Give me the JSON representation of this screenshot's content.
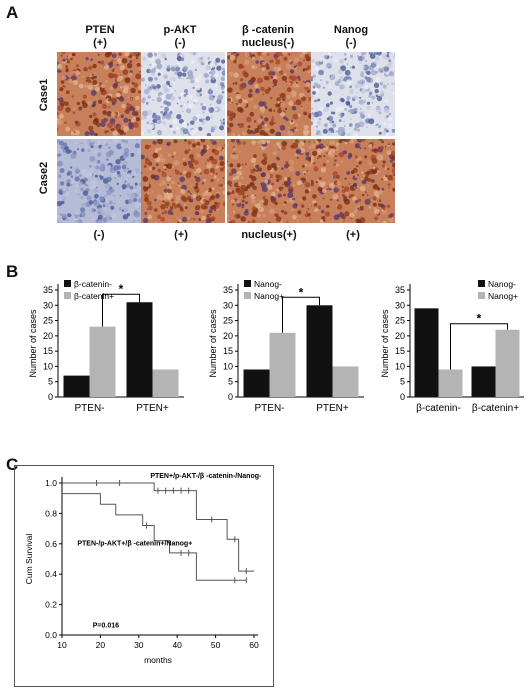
{
  "panels": {
    "a": "A",
    "b": "B",
    "c": "C"
  },
  "ihc": {
    "columns": [
      {
        "title": "PTEN",
        "sub": "(+)"
      },
      {
        "title": "p-AKT",
        "sub": "(-)"
      },
      {
        "title": "β -catenin",
        "sub": "nucleus(-)"
      },
      {
        "title": "Nanog",
        "sub": "(-)"
      }
    ],
    "rows": [
      "Case1",
      "Case2"
    ],
    "bottom": [
      "(-)",
      "(+)",
      "nucleus(+)",
      "(+)"
    ],
    "tiles": [
      [
        "brown",
        "blue",
        "brown",
        "blue"
      ],
      [
        "blue",
        "brown",
        "brown",
        "brown"
      ]
    ],
    "colors": {
      "brown": "#b5532e",
      "blue": "#8a96bf",
      "paleblue": "#d6d9e6"
    }
  },
  "chart_data": [
    {
      "type": "bar",
      "categories": [
        "PTEN-",
        "PTEN+"
      ],
      "series": [
        {
          "name": "β-catenin-",
          "values": [
            7,
            31
          ],
          "color": "#111111"
        },
        {
          "name": "β-catenin+",
          "values": [
            23,
            9
          ],
          "color": "#b4b4b4"
        }
      ],
      "ylabel": "Number of cases",
      "ylim": [
        0,
        35
      ],
      "yticks": [
        0,
        5,
        10,
        15,
        20,
        25,
        30,
        35
      ],
      "legend": "top-left",
      "significance": "*"
    },
    {
      "type": "bar",
      "categories": [
        "PTEN-",
        "PTEN+"
      ],
      "series": [
        {
          "name": "Nanog-",
          "values": [
            9,
            30
          ],
          "color": "#111111"
        },
        {
          "name": "Nanog+",
          "values": [
            21,
            10
          ],
          "color": "#b4b4b4"
        }
      ],
      "ylabel": "Number of cases",
      "ylim": [
        0,
        35
      ],
      "yticks": [
        0,
        5,
        10,
        15,
        20,
        25,
        30,
        35
      ],
      "legend": "top-left",
      "significance": "*"
    },
    {
      "type": "bar",
      "categories": [
        "β-catenin-",
        "β-catenin+"
      ],
      "series": [
        {
          "name": "Nanog-",
          "values": [
            29,
            10
          ],
          "color": "#111111"
        },
        {
          "name": "Nanog+",
          "values": [
            9,
            22
          ],
          "color": "#b4b4b4"
        }
      ],
      "ylabel": "Number of cases",
      "ylim": [
        0,
        35
      ],
      "yticks": [
        0,
        5,
        10,
        15,
        20,
        25,
        30,
        35
      ],
      "legend": "top-right",
      "significance": "*"
    },
    {
      "type": "line",
      "xlabel": "months",
      "ylabel": "Cum Survival",
      "xlim": [
        10,
        60
      ],
      "xticks": [
        10,
        20,
        30,
        40,
        50,
        60
      ],
      "ylim": [
        0,
        1.0
      ],
      "yticks": [
        "0.0",
        "0.2",
        "0.4",
        "0.6",
        "0.8",
        "1.0"
      ],
      "annotation": "P=0.016",
      "series": [
        {
          "name": "PTEN+/p-AKT-/β -catenin-/Nanog-",
          "steps": [
            [
              10,
              1.0
            ],
            [
              34,
              1.0
            ],
            [
              34,
              0.95
            ],
            [
              45,
              0.95
            ],
            [
              45,
              0.76
            ],
            [
              53,
              0.76
            ],
            [
              53,
              0.63
            ],
            [
              56,
              0.63
            ],
            [
              56,
              0.42
            ],
            [
              60,
              0.42
            ]
          ],
          "censored": [
            [
              19,
              1.0
            ],
            [
              25,
              1.0
            ],
            [
              35,
              0.95
            ],
            [
              37,
              0.95
            ],
            [
              39,
              0.95
            ],
            [
              41,
              0.95
            ],
            [
              43,
              0.95
            ],
            [
              49,
              0.76
            ],
            [
              55,
              0.63
            ],
            [
              58,
              0.42
            ]
          ]
        },
        {
          "name": "PTEN-/p-AKT+/β -catenin+/Nanog+",
          "steps": [
            [
              10,
              0.93
            ],
            [
              20,
              0.93
            ],
            [
              20,
              0.86
            ],
            [
              24,
              0.86
            ],
            [
              24,
              0.79
            ],
            [
              31,
              0.79
            ],
            [
              31,
              0.72
            ],
            [
              34,
              0.72
            ],
            [
              34,
              0.62
            ],
            [
              38,
              0.62
            ],
            [
              38,
              0.54
            ],
            [
              45,
              0.54
            ],
            [
              45,
              0.36
            ],
            [
              58,
              0.36
            ]
          ],
          "censored": [
            [
              32,
              0.72
            ],
            [
              41,
              0.54
            ],
            [
              43,
              0.54
            ],
            [
              55,
              0.36
            ],
            [
              58,
              0.36
            ]
          ]
        }
      ]
    }
  ]
}
